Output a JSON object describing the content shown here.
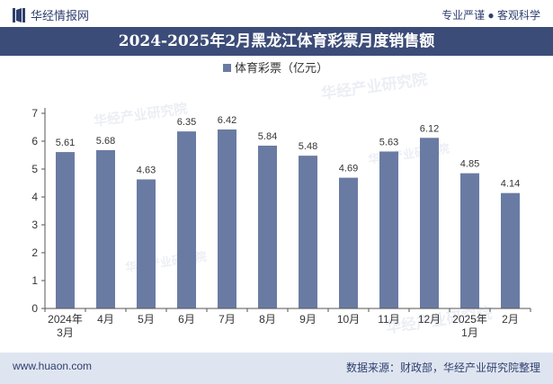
{
  "header": {
    "brand": "华经情报网",
    "slogan": "专业严谨 ● 客观科学"
  },
  "chart_data": {
    "type": "bar",
    "title": "2024-2025年2月黑龙江体育彩票月度销售额",
    "legend": "体育彩票（亿元）",
    "legend_position": "top-center",
    "categories": [
      "2024年\n3月",
      "4月",
      "5月",
      "6月",
      "7月",
      "8月",
      "9月",
      "10月",
      "11月",
      "12月",
      "2025年\n1月",
      "2月"
    ],
    "values": [
      5.61,
      5.68,
      4.63,
      6.35,
      6.42,
      5.84,
      5.48,
      4.69,
      5.63,
      6.12,
      4.85,
      4.14
    ],
    "ylim": [
      0,
      7
    ],
    "yticks": [
      0,
      1,
      2,
      3,
      4,
      5,
      6,
      7
    ],
    "grid": false,
    "bar_color": "#6a7ba3"
  },
  "watermark": "华经产业研究院",
  "footer": {
    "left": "www.huaon.com",
    "right": "数据来源：财政部，华经产业研究院整理"
  }
}
